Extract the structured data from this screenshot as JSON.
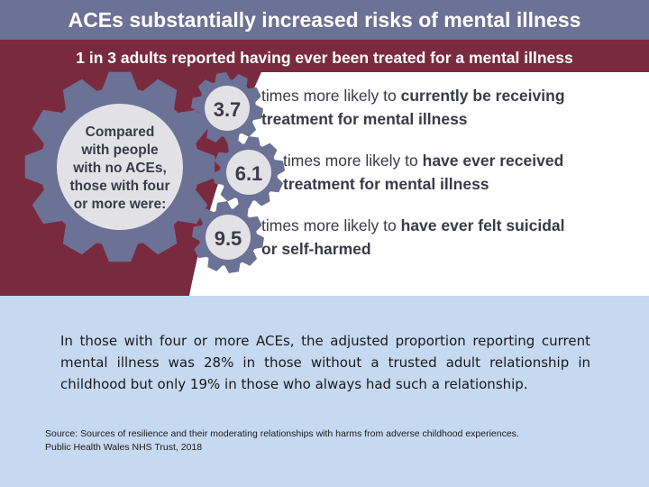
{
  "header": {
    "title": "ACEs substantially increased risks of mental illness",
    "subtitle": "1 in 3 adults reported having ever been treated for a mental illness"
  },
  "gear": {
    "lines": [
      "Compared",
      "with people",
      "with no ACEs,",
      "those with four",
      "or more were:"
    ]
  },
  "stats": [
    {
      "value": "3.7",
      "prefix": "times more likely to ",
      "bold1": "currently be receiving",
      "bold2": "treatment for mental illness"
    },
    {
      "value": "6.1",
      "prefix": "times more likely to ",
      "bold1": "have ever received",
      "bold2": "treatment for mental illness"
    },
    {
      "value": "9.5",
      "prefix": "times more likely to ",
      "bold1": "have ever felt suicidal",
      "bold2": "or self-harmed"
    }
  ],
  "body_text": "In those with four or more ACEs, the adjusted proportion reporting current mental illness was 28% in those without a trusted adult relationship in childhood but only 19% in those who always had such a relationship.",
  "source": {
    "line1": "Source: Sources of resilience and their moderating relationships with harms from adverse childhood experiences.",
    "line2": "Public Health Wales NHS Trust, 2018"
  },
  "colors": {
    "slate": "#6c7196",
    "maroon": "#7a2a3f",
    "grey": "#e2e2e6",
    "white": "#ffffff",
    "text_dark": "#3a3a48",
    "background": "#c5d9f1"
  }
}
